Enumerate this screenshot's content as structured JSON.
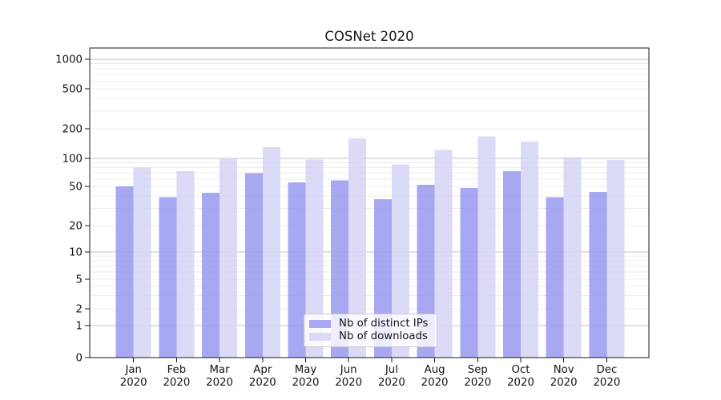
{
  "chart_data": {
    "type": "bar",
    "title": "COSNet 2020",
    "categories": [
      "Jan",
      "Feb",
      "Mar",
      "Apr",
      "May",
      "Jun",
      "Jul",
      "Aug",
      "Sep",
      "Oct",
      "Nov",
      "Dec"
    ],
    "year_label": "2020",
    "series": [
      {
        "name": "Nb of distinct IPs",
        "color": "#9898f0",
        "values": [
          50,
          39,
          43,
          69,
          55,
          58,
          37,
          52,
          48,
          73,
          39,
          44
        ]
      },
      {
        "name": "Nb of downloads",
        "color": "#d5d3f6",
        "values": [
          80,
          73,
          100,
          130,
          97,
          160,
          86,
          122,
          168,
          148,
          103,
          96
        ]
      }
    ],
    "y_axis": {
      "scale": "symlog",
      "ticks": [
        0,
        1,
        2,
        5,
        10,
        20,
        50,
        100,
        200,
        500,
        1000
      ],
      "tick_labels": [
        "0",
        "1",
        "2",
        "5",
        "10",
        "20",
        "50",
        "100",
        "200",
        "500",
        "1000"
      ],
      "ylim": [
        0,
        1200
      ]
    },
    "grid": {
      "show_minor": true,
      "major_color": "#c6c6c6",
      "minor_color": "#ececec"
    },
    "legend_position": "lower center"
  }
}
